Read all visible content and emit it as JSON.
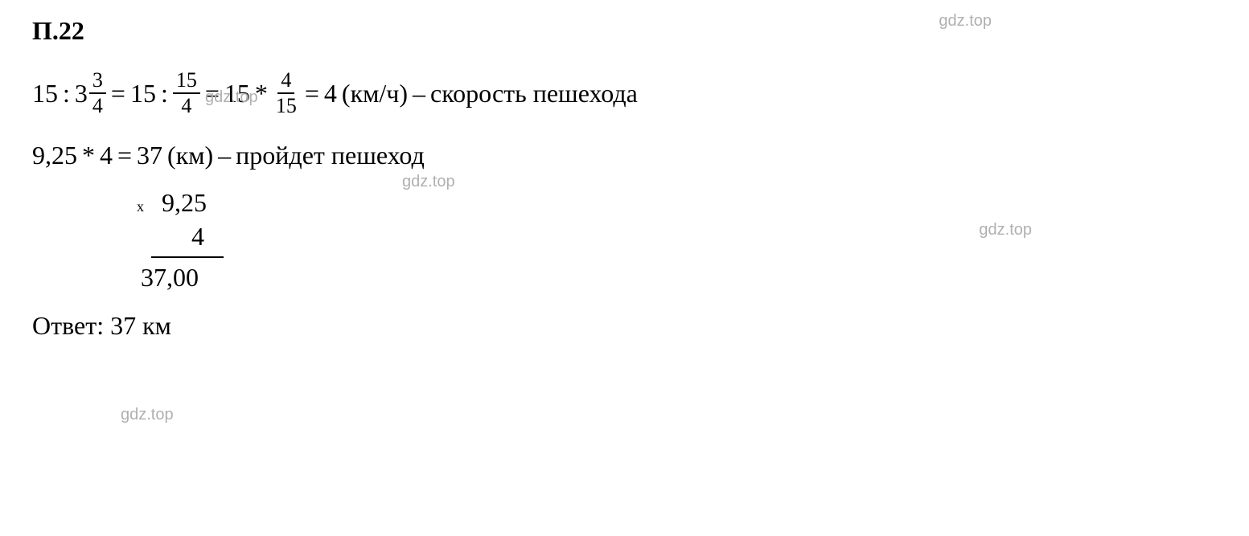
{
  "heading": "П.22",
  "watermark": "gdz.top",
  "line1": {
    "a": "15",
    "op1": ":",
    "mixed_whole": "3",
    "mixed_num": "3",
    "mixed_den": "4",
    "eq1": "=",
    "b": "15",
    "op2": ":",
    "frac2_num": "15",
    "frac2_den": "4",
    "eq2": "=",
    "c": "15",
    "op3": "*",
    "frac3_num": "4",
    "frac3_den": "15",
    "eq3": "=",
    "result": "4",
    "unit": "(км/ч)",
    "dash": "–",
    "desc": "скорость пешехода"
  },
  "line2": {
    "a": "9,25",
    "op": "*",
    "b": "4",
    "eq": "=",
    "result": "37",
    "unit": "(км)",
    "dash": "–",
    "desc": "пройдет пешеход"
  },
  "computation": {
    "mult_sign": "x",
    "val1": "9,25",
    "val2": "4",
    "result": "37,00"
  },
  "answer": {
    "label": "Ответ:",
    "value": "37 км"
  },
  "colors": {
    "text": "#000000",
    "background": "#ffffff",
    "watermark": "#b0b0b0"
  },
  "fonts": {
    "main_family": "Times New Roman",
    "main_size": 32,
    "fraction_size": 26,
    "watermark_family": "Arial",
    "watermark_size": 20
  }
}
